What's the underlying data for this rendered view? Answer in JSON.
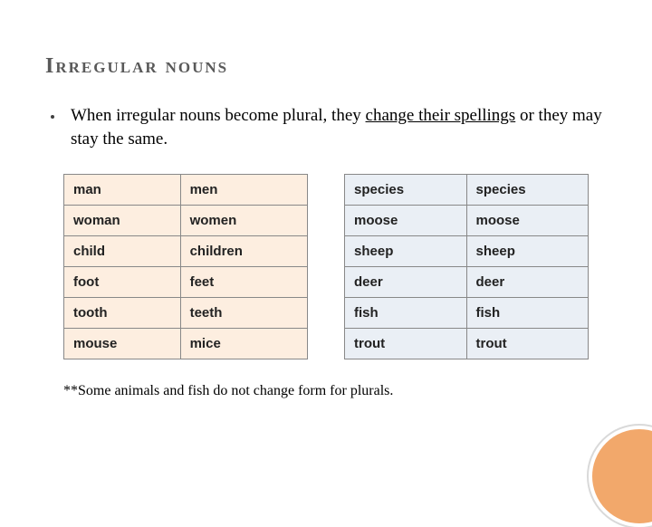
{
  "title": "Irregular nouns",
  "bullet": {
    "pre": "When irregular nouns become plural, they ",
    "underlined": "change their spellings",
    "post": " or they may stay the same."
  },
  "table_left": {
    "bg": "#fdeee0",
    "rows": [
      [
        "man",
        "men"
      ],
      [
        "woman",
        "women"
      ],
      [
        "child",
        "children"
      ],
      [
        "foot",
        "feet"
      ],
      [
        "tooth",
        "teeth"
      ],
      [
        "mouse",
        "mice"
      ]
    ]
  },
  "table_right": {
    "bg": "#eaeff5",
    "rows": [
      [
        "species",
        "species"
      ],
      [
        "moose",
        "moose"
      ],
      [
        "sheep",
        "sheep"
      ],
      [
        "deer",
        "deer"
      ],
      [
        "fish",
        "fish"
      ],
      [
        "trout",
        "trout"
      ]
    ]
  },
  "footnote": "**Some animals and fish do not change form for plurals.",
  "decor": {
    "circle_fill": "#f2a86b"
  }
}
